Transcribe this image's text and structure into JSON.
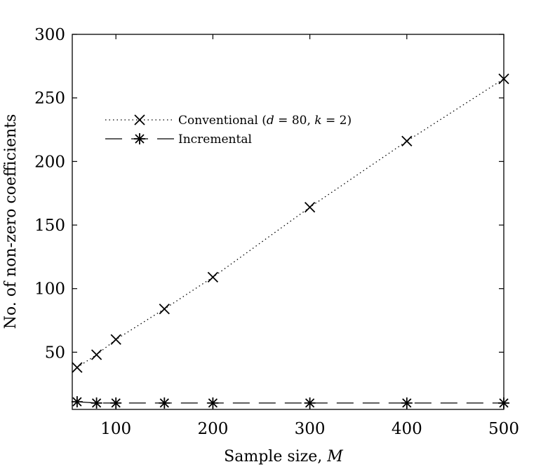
{
  "chart_data": {
    "type": "line",
    "xlabel": "Sample size, ",
    "xlabel_var": "M",
    "ylabel": "No. of non-zero coefficients",
    "xlim": [
      55,
      500
    ],
    "ylim": [
      5,
      300
    ],
    "x_ticks": [
      100,
      200,
      300,
      400,
      500
    ],
    "y_ticks": [
      50,
      100,
      150,
      200,
      250,
      300
    ],
    "grid": false,
    "legend_position": "upper-left",
    "x": [
      60,
      80,
      100,
      150,
      200,
      300,
      400,
      500
    ],
    "series": [
      {
        "name": "Conventional (d = 80, k = 2)",
        "name_parts": {
          "prefix": "Conventional (",
          "d": "d",
          "eq1": " = 80, ",
          "k": "k",
          "eq2": " = 2)"
        },
        "values": [
          38,
          48,
          60,
          84,
          109,
          164,
          216,
          265
        ],
        "line_style": "dotted",
        "marker": "x"
      },
      {
        "name": "Incremental",
        "values": [
          11,
          10,
          10,
          10,
          10,
          10,
          10,
          10
        ],
        "line_style": "dashed",
        "marker": "asterisk"
      }
    ],
    "color": "#000000"
  }
}
